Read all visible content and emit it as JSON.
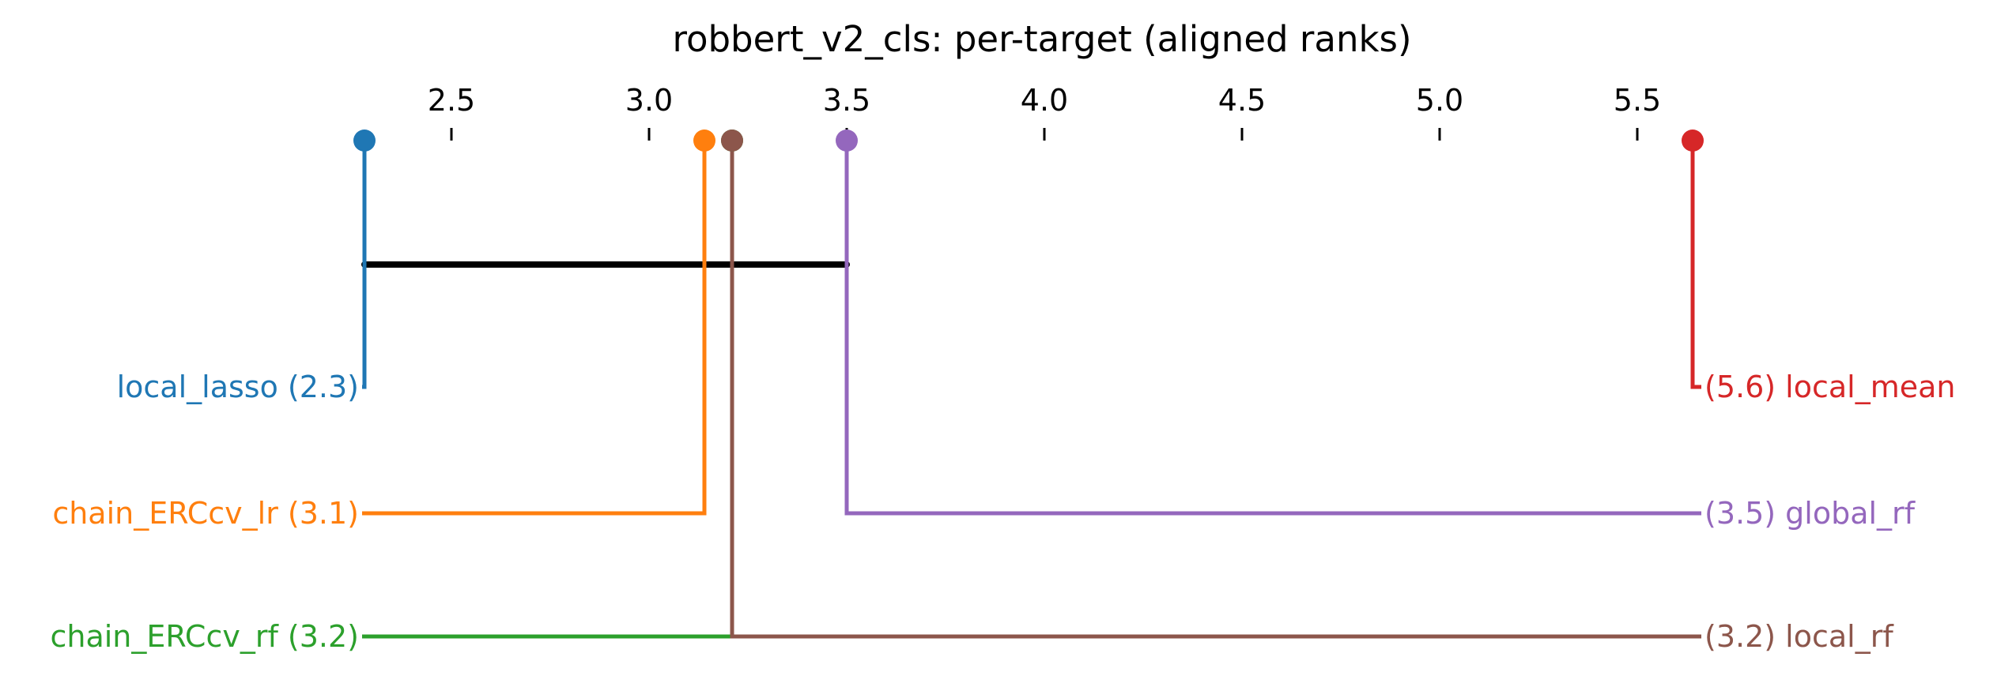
{
  "chart_data": {
    "type": "critical-difference-diagram",
    "title": "robbert_v2_cls: per-target (aligned ranks)",
    "axis": {
      "range": [
        2.28,
        5.64
      ],
      "ticks": [
        "2.5",
        "3.0",
        "3.5",
        "4.0",
        "4.5",
        "5.0",
        "5.5"
      ],
      "tick_values": [
        2.5,
        3.0,
        3.5,
        4.0,
        4.5,
        5.0,
        5.5
      ],
      "position": "top"
    },
    "methods": [
      {
        "name": "local_lasso",
        "rank": 2.28,
        "label": "local_lasso (2.3)",
        "side": "left",
        "row": 1,
        "color": "#1f77b4"
      },
      {
        "name": "chain_ERCcv_lr",
        "rank": 3.14,
        "label": "chain_ERCcv_lr (3.1)",
        "side": "left",
        "row": 2,
        "color": "#ff7f0e"
      },
      {
        "name": "chain_ERCcv_rf",
        "rank": 3.21,
        "label": "chain_ERCcv_rf (3.2)",
        "side": "left",
        "row": 3,
        "color": "#2ca02c"
      },
      {
        "name": "local_rf",
        "rank": 3.21,
        "label": "(3.2) local_rf",
        "side": "right",
        "row": 3,
        "color": "#8c564b"
      },
      {
        "name": "global_rf",
        "rank": 3.5,
        "label": "(3.5) global_rf",
        "side": "right",
        "row": 2,
        "color": "#9467bd"
      },
      {
        "name": "local_mean",
        "rank": 5.64,
        "label": "(5.6) local_mean",
        "side": "right",
        "row": 1,
        "color": "#d62728"
      }
    ],
    "cliques": [
      {
        "from": 2.28,
        "to": 3.5
      }
    ]
  }
}
